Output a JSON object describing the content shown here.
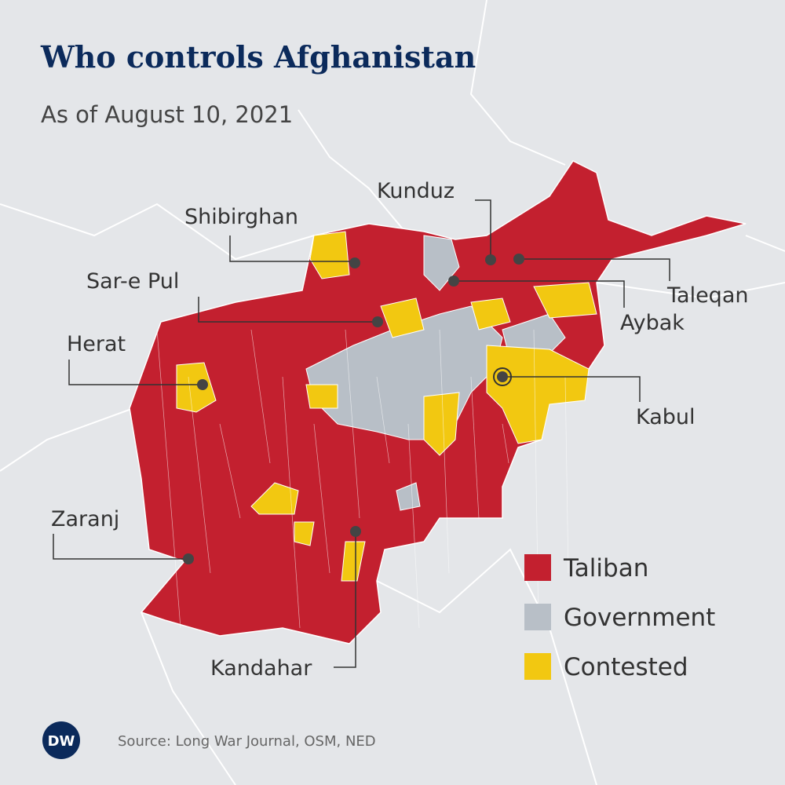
{
  "header": {
    "title": "Who controls Afghanistan",
    "subtitle": "As of August 10, 2021"
  },
  "cities": [
    {
      "label": "Kunduz"
    },
    {
      "label": "Shibirghan"
    },
    {
      "label": "Sar-e Pul"
    },
    {
      "label": "Herat"
    },
    {
      "label": "Zaranj"
    },
    {
      "label": "Kandahar"
    },
    {
      "label": "Taleqan"
    },
    {
      "label": "Aybak"
    },
    {
      "label": "Kabul"
    }
  ],
  "legend": [
    {
      "label": "Taliban",
      "color": "#c3202f"
    },
    {
      "label": "Government",
      "color": "#b8bfc7"
    },
    {
      "label": "Contested",
      "color": "#f2c811"
    }
  ],
  "footer": {
    "logo": "DW",
    "source": "Source: Long War Journal, OSM, NED"
  }
}
